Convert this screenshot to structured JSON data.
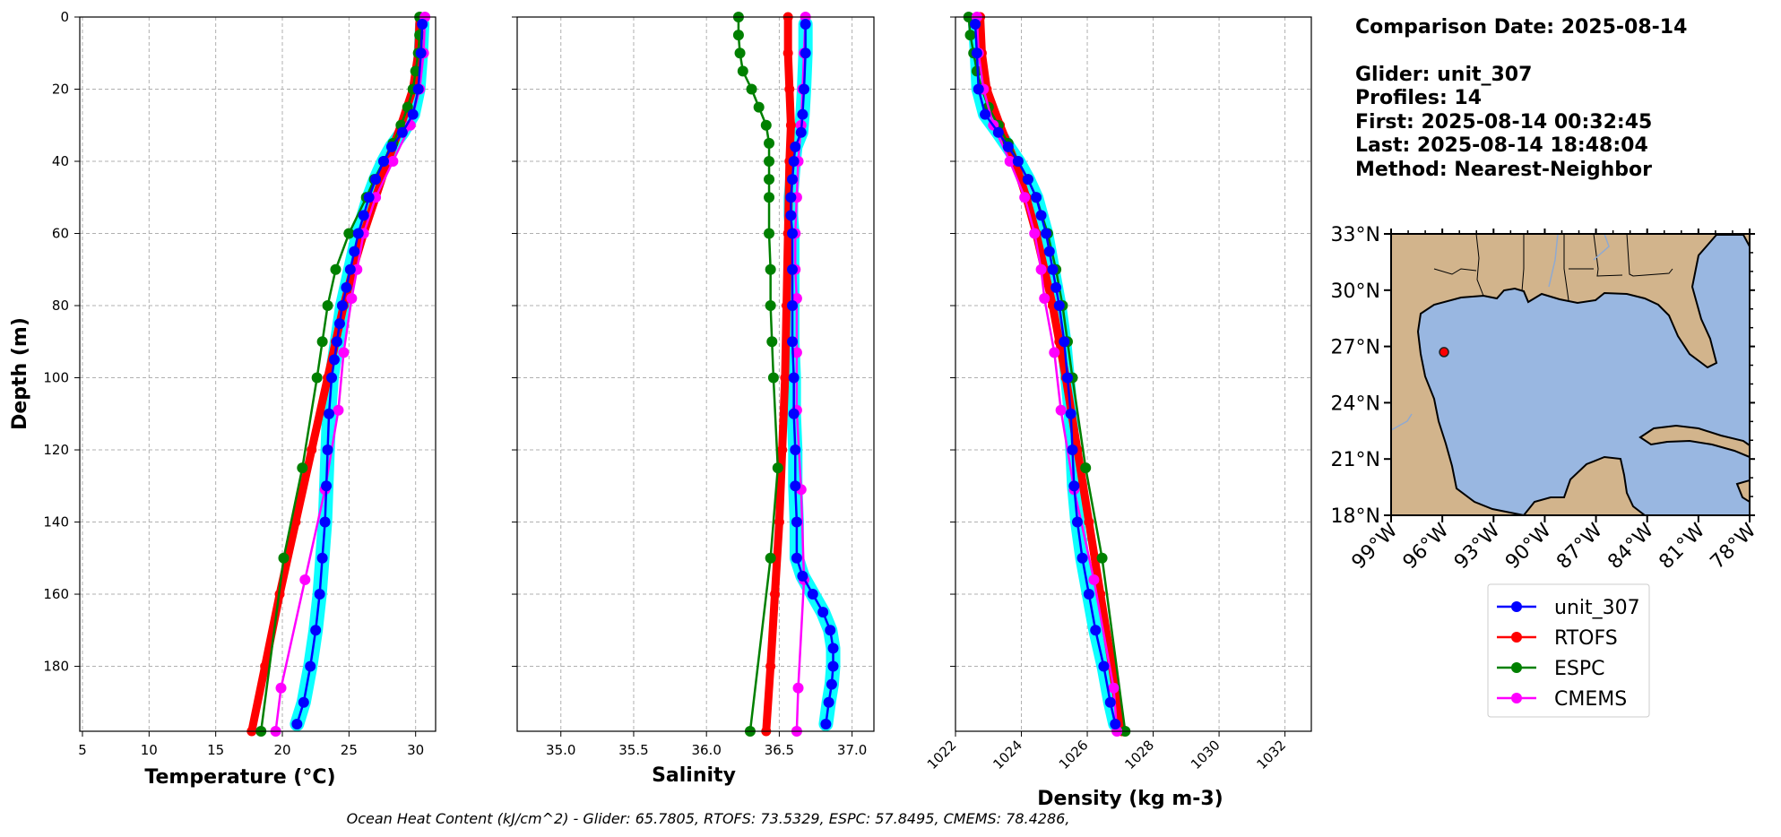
{
  "chart_data": [
    {
      "type": "line",
      "xlabel": "Temperature (°C)",
      "ylabel": "Depth (m)",
      "xlim": [
        4.8,
        31.5
      ],
      "ylim": [
        198,
        0
      ],
      "xticks": [
        5,
        10,
        15,
        20,
        25,
        30
      ],
      "yticks": [
        0,
        20,
        40,
        60,
        80,
        100,
        120,
        140,
        160,
        180
      ],
      "grid": true,
      "series": [
        {
          "name": "unit_307",
          "color": "#0000ff",
          "band": "#00ffff",
          "depth": [
            2,
            10,
            20,
            27,
            32,
            36,
            40,
            45,
            50,
            55,
            60,
            65,
            70,
            75,
            80,
            85,
            90,
            95,
            100,
            110,
            120,
            130,
            140,
            150,
            160,
            170,
            180,
            190,
            196
          ],
          "values": [
            30.5,
            30.4,
            30.2,
            29.8,
            29.0,
            28.2,
            27.6,
            27.0,
            26.5,
            26.1,
            25.7,
            25.4,
            25.1,
            24.8,
            24.5,
            24.3,
            24.1,
            23.9,
            23.7,
            23.5,
            23.4,
            23.3,
            23.2,
            23.0,
            22.8,
            22.5,
            22.1,
            21.6,
            21.1
          ]
        },
        {
          "name": "RTOFS",
          "color": "#ff0000",
          "depth": [
            0,
            10,
            20,
            30,
            40,
            50,
            60,
            70,
            80,
            90,
            100,
            120,
            140,
            160,
            180,
            198
          ],
          "values": [
            30.3,
            30.2,
            29.8,
            28.9,
            27.9,
            27.0,
            26.1,
            25.3,
            24.6,
            24.0,
            23.4,
            22.2,
            21.0,
            19.8,
            18.7,
            17.7
          ]
        },
        {
          "name": "ESPC",
          "color": "#008000",
          "depth": [
            0,
            5,
            10,
            15,
            20,
            25,
            30,
            35,
            40,
            45,
            50,
            60,
            70,
            80,
            90,
            100,
            125,
            150,
            198
          ],
          "values": [
            30.3,
            30.3,
            30.2,
            30.0,
            29.8,
            29.4,
            28.9,
            28.3,
            27.6,
            26.9,
            26.3,
            25.0,
            24.0,
            23.4,
            23.0,
            22.6,
            21.5,
            20.1,
            18.4
          ]
        },
        {
          "name": "CMEMS",
          "color": "#ff00ff",
          "depth": [
            0,
            10,
            20,
            30,
            40,
            50,
            60,
            70,
            78,
            93,
            109,
            131,
            156,
            186,
            198
          ],
          "values": [
            30.7,
            30.6,
            30.3,
            29.6,
            28.3,
            27.0,
            26.1,
            25.6,
            25.2,
            24.6,
            24.2,
            23.2,
            21.7,
            19.9,
            19.5
          ]
        }
      ]
    },
    {
      "type": "line",
      "xlabel": "Salinity",
      "xlim": [
        34.7,
        37.15
      ],
      "ylim": [
        198,
        0
      ],
      "xticks": [
        35.0,
        35.5,
        36.0,
        36.5,
        37.0
      ],
      "grid": true,
      "series": [
        {
          "name": "unit_307",
          "color": "#0000ff",
          "band": "#00ffff",
          "depth": [
            2,
            10,
            20,
            27,
            32,
            36,
            40,
            45,
            50,
            55,
            60,
            70,
            80,
            90,
            100,
            110,
            120,
            130,
            140,
            150,
            155,
            160,
            165,
            170,
            175,
            180,
            185,
            190,
            196
          ],
          "values": [
            36.68,
            36.68,
            36.67,
            36.66,
            36.65,
            36.61,
            36.6,
            36.59,
            36.58,
            36.58,
            36.59,
            36.59,
            36.59,
            36.59,
            36.6,
            36.6,
            36.61,
            36.61,
            36.62,
            36.62,
            36.66,
            36.73,
            36.8,
            36.85,
            36.87,
            36.87,
            36.86,
            36.84,
            36.82
          ]
        },
        {
          "name": "RTOFS",
          "color": "#ff0000",
          "depth": [
            0,
            10,
            20,
            30,
            40,
            60,
            80,
            100,
            120,
            140,
            160,
            180,
            198
          ],
          "values": [
            36.56,
            36.56,
            36.57,
            36.58,
            36.57,
            36.56,
            36.55,
            36.54,
            36.52,
            36.5,
            36.47,
            36.44,
            36.41
          ]
        },
        {
          "name": "ESPC",
          "color": "#008000",
          "depth": [
            0,
            5,
            10,
            15,
            20,
            25,
            30,
            35,
            40,
            45,
            50,
            60,
            70,
            80,
            90,
            100,
            125,
            150,
            198
          ],
          "values": [
            36.22,
            36.22,
            36.23,
            36.25,
            36.31,
            36.36,
            36.41,
            36.43,
            36.43,
            36.43,
            36.43,
            36.43,
            36.44,
            36.44,
            36.45,
            36.46,
            36.49,
            36.44,
            36.3
          ]
        },
        {
          "name": "CMEMS",
          "color": "#ff00ff",
          "depth": [
            0,
            10,
            20,
            30,
            40,
            50,
            60,
            70,
            78,
            93,
            109,
            131,
            156,
            186,
            198
          ],
          "values": [
            36.68,
            36.67,
            36.66,
            36.65,
            36.63,
            36.62,
            36.61,
            36.61,
            36.62,
            36.62,
            36.62,
            36.65,
            36.67,
            36.63,
            36.62
          ]
        }
      ]
    },
    {
      "type": "line",
      "xlabel": "Density (kg m-3)",
      "xlim": [
        1022,
        1032.8
      ],
      "ylim": [
        198,
        0
      ],
      "xticks": [
        1022,
        1024,
        1026,
        1028,
        1030,
        1032
      ],
      "grid": true,
      "series": [
        {
          "name": "unit_307",
          "color": "#0000ff",
          "band": "#00ffff",
          "depth": [
            2,
            10,
            20,
            27,
            32,
            36,
            40,
            45,
            50,
            55,
            60,
            65,
            70,
            75,
            80,
            90,
            100,
            110,
            120,
            130,
            140,
            150,
            160,
            170,
            180,
            190,
            196
          ],
          "values": [
            1022.6,
            1022.65,
            1022.7,
            1022.9,
            1023.3,
            1023.6,
            1023.9,
            1024.2,
            1024.45,
            1024.6,
            1024.75,
            1024.85,
            1024.95,
            1025.05,
            1025.15,
            1025.3,
            1025.4,
            1025.5,
            1025.55,
            1025.6,
            1025.7,
            1025.85,
            1026.05,
            1026.25,
            1026.5,
            1026.7,
            1026.85
          ]
        },
        {
          "name": "RTOFS",
          "color": "#ff0000",
          "depth": [
            0,
            10,
            20,
            30,
            40,
            50,
            60,
            70,
            80,
            90,
            100,
            120,
            140,
            160,
            180,
            198
          ],
          "values": [
            1022.75,
            1022.8,
            1022.95,
            1023.35,
            1023.8,
            1024.15,
            1024.45,
            1024.7,
            1024.95,
            1025.15,
            1025.35,
            1025.7,
            1026.05,
            1026.4,
            1026.75,
            1027.05
          ]
        },
        {
          "name": "ESPC",
          "color": "#008000",
          "depth": [
            0,
            5,
            10,
            15,
            20,
            25,
            30,
            35,
            40,
            45,
            50,
            60,
            70,
            80,
            90,
            100,
            125,
            150,
            198
          ],
          "values": [
            1022.4,
            1022.45,
            1022.55,
            1022.65,
            1022.8,
            1023.0,
            1023.3,
            1023.6,
            1023.9,
            1024.2,
            1024.45,
            1024.8,
            1025.05,
            1025.25,
            1025.4,
            1025.55,
            1025.95,
            1026.45,
            1027.15
          ]
        },
        {
          "name": "CMEMS",
          "color": "#ff00ff",
          "depth": [
            0,
            10,
            20,
            30,
            40,
            50,
            60,
            70,
            78,
            93,
            109,
            131,
            156,
            186,
            198
          ],
          "values": [
            1022.65,
            1022.7,
            1022.85,
            1023.15,
            1023.65,
            1024.1,
            1024.4,
            1024.6,
            1024.7,
            1025.0,
            1025.2,
            1025.6,
            1026.2,
            1026.8,
            1026.9
          ]
        }
      ]
    }
  ],
  "info": {
    "comparison_date": "Comparison Date: 2025-08-14",
    "glider": "Glider: unit_307",
    "profiles": "Profiles: 14",
    "first": "First: 2025-08-14 00:32:45",
    "last": "Last: 2025-08-14 18:48:04",
    "method": "Method: Nearest-Neighbor"
  },
  "map": {
    "lon_range": [
      -99,
      -78
    ],
    "lat_range": [
      18,
      33
    ],
    "lon_ticks": [
      "99°W",
      "96°W",
      "93°W",
      "90°W",
      "87°W",
      "84°W",
      "81°W",
      "78°W"
    ],
    "lat_ticks": [
      "33°N",
      "30°N",
      "27°N",
      "24°N",
      "21°N",
      "18°N"
    ],
    "land_color": "#d2b48c",
    "ocean_color": "#99b7e1",
    "glider_marker": {
      "lon": -95.9,
      "lat": 26.7
    }
  },
  "legend": {
    "entries": [
      {
        "label": "unit_307",
        "color": "#0000ff"
      },
      {
        "label": "RTOFS",
        "color": "#ff0000"
      },
      {
        "label": "ESPC",
        "color": "#008000"
      },
      {
        "label": "CMEMS",
        "color": "#ff00ff"
      }
    ]
  },
  "footer": "Ocean Heat Content (kJ/cm^2) - Glider: 65.7805,  RTOFS: 73.5329,  ESPC: 57.8495,  CMEMS: 78.4286,"
}
